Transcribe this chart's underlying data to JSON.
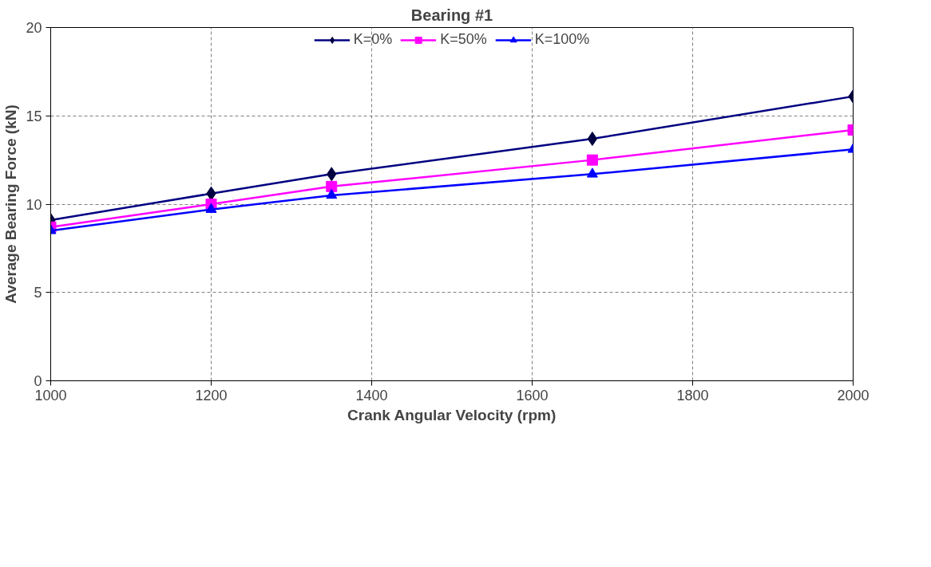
{
  "chart_data": {
    "type": "line",
    "title": "Bearing #1",
    "xlabel": "Crank Angular Velocity (rpm)",
    "ylabel": "Average Bearing Force (kN)",
    "x": [
      1000,
      1200,
      1350,
      1675,
      2000
    ],
    "series": [
      {
        "name": "K=0%",
        "color": "#000080",
        "marker": "diamond",
        "values": [
          9.1,
          10.6,
          11.7,
          13.7,
          16.1
        ]
      },
      {
        "name": "K=50%",
        "color": "#ff00ff",
        "marker": "square",
        "values": [
          8.7,
          10.0,
          11.0,
          12.5,
          14.2
        ]
      },
      {
        "name": "K=100%",
        "color": "#0000ff",
        "marker": "triangle",
        "values": [
          8.5,
          9.7,
          10.5,
          11.7,
          13.1
        ]
      }
    ],
    "xlim": [
      1000,
      2000
    ],
    "xticks": [
      1000,
      1200,
      1400,
      1600,
      1800,
      2000
    ],
    "ylim": [
      0,
      20
    ],
    "yticks": [
      0,
      5,
      10,
      15,
      20
    ],
    "grid": true,
    "legend": "top",
    "line_style": "solid"
  }
}
